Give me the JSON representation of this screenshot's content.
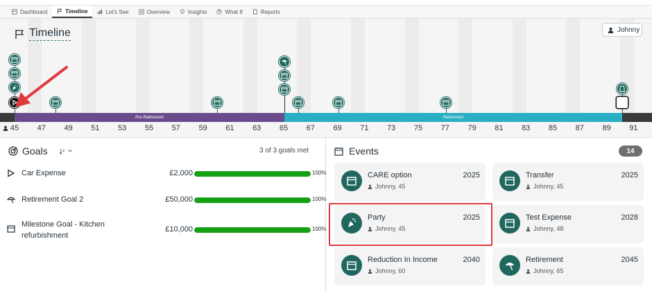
{
  "nav": {
    "items": [
      {
        "label": "Dashboard",
        "icon": "dashboard-icon",
        "active": false
      },
      {
        "label": "Timeline",
        "icon": "flag-icon",
        "active": true
      },
      {
        "label": "Let's See",
        "icon": "chart-icon",
        "active": false
      },
      {
        "label": "Overview",
        "icon": "overview-icon",
        "active": false
      },
      {
        "label": "Insights",
        "icon": "bulb-icon",
        "active": false
      },
      {
        "label": "What If",
        "icon": "whatif-icon",
        "active": false
      },
      {
        "label": "Reports",
        "icon": "report-icon",
        "active": false
      }
    ]
  },
  "timeline": {
    "title": "Timeline",
    "user_button": "Johnny",
    "phases": {
      "pre": "Pre-Retirement",
      "ret": "Retirement"
    },
    "ages": [
      "45",
      "47",
      "49",
      "51",
      "53",
      "55",
      "57",
      "59",
      "61",
      "63",
      "65",
      "67",
      "69",
      "71",
      "73",
      "75",
      "77",
      "79",
      "81",
      "83",
      "85",
      "87",
      "89",
      "91"
    ]
  },
  "goals": {
    "title": "Goals",
    "met": "3 of 3 goals met",
    "items": [
      {
        "name": "Car Expense",
        "amount": "£2,000",
        "progress": 100,
        "percent": "100%",
        "icon": "play-icon"
      },
      {
        "name": "Retirement Goal 2",
        "amount": "£50,000",
        "progress": 100,
        "percent": "100%",
        "icon": "beach-umbrella-icon"
      },
      {
        "name": "Milestone Goal - Kitchen refurbishment",
        "amount": "£10,000",
        "progress": 100,
        "percent": "100%",
        "icon": "calendar-icon"
      }
    ]
  },
  "events": {
    "title": "Events",
    "count": "14",
    "items": [
      {
        "name": "CARE option",
        "year": "2025",
        "meta": "Johnny, 45",
        "icon": "calendar-icon"
      },
      {
        "name": "Transfer",
        "year": "2025",
        "meta": "Johnny, 45",
        "icon": "calendar-icon"
      },
      {
        "name": "Party",
        "year": "2025",
        "meta": "Johnny, 45",
        "icon": "party-popper-icon"
      },
      {
        "name": "Test Expense",
        "year": "2028",
        "meta": "Johnny, 48",
        "icon": "calendar-icon"
      },
      {
        "name": "Reduction In Income",
        "year": "2040",
        "meta": "Johnny, 60",
        "icon": "calendar-icon"
      },
      {
        "name": "Retirement",
        "year": "2045",
        "meta": "Johnny, 65",
        "icon": "beach-umbrella-icon"
      }
    ]
  },
  "colors": {
    "teal": "#20685f",
    "pre_retirement": "#6a4c8c",
    "retirement": "#2aaec4",
    "progress": "#16a016",
    "highlight": "#e0393e"
  }
}
